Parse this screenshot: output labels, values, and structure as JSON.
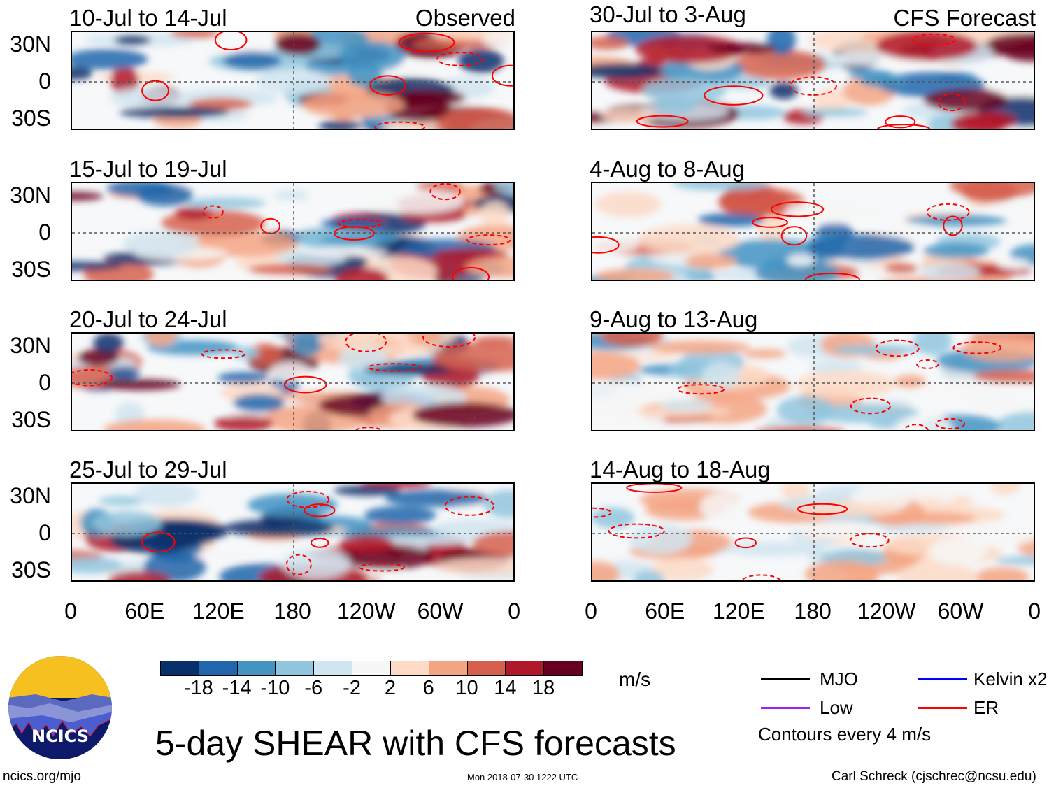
{
  "observed_label": "Observed",
  "forecast_label": "CFS Forecast",
  "panels_left": [
    "10-Jul to 14-Jul",
    "15-Jul to 19-Jul",
    "20-Jul to 24-Jul",
    "25-Jul to 29-Jul"
  ],
  "panels_right": [
    "30-Jul to 3-Aug",
    "4-Aug to 8-Aug",
    "9-Aug to 13-Aug",
    "14-Aug to 18-Aug"
  ],
  "lat_labels": [
    "30N",
    "0",
    "30S"
  ],
  "lon_labels": [
    "0",
    "60E",
    "120E",
    "180",
    "120W",
    "60W",
    "0"
  ],
  "colorbar": {
    "colors": [
      "#08306b",
      "#2166ac",
      "#4393c3",
      "#92c5de",
      "#d1e5f0",
      "#f7f7f7",
      "#fddbc7",
      "#f4a582",
      "#d6604d",
      "#b2182b",
      "#67001f"
    ],
    "labels": [
      "-18",
      "-14",
      "-10",
      "-6",
      "-2",
      "2",
      "6",
      "10",
      "14",
      "18"
    ],
    "units": "m/s"
  },
  "legend": {
    "items": [
      {
        "label": "MJO",
        "color": "#000000"
      },
      {
        "label": "Kelvin x2",
        "color": "#0000ff"
      },
      {
        "label": "Low",
        "color": "#a020f0"
      },
      {
        "label": "ER",
        "color": "#ff0000"
      }
    ],
    "contours": "Contours every 4 m/s"
  },
  "title": "5-day SHEAR with CFS forecasts",
  "logo_text": "NCICS",
  "footer": {
    "url": "ncics.org/mjo",
    "timestamp": "Mon 2018-07-30 1222 UTC",
    "author": "Carl Schreck (cjschrec@ncsu.edu)"
  }
}
